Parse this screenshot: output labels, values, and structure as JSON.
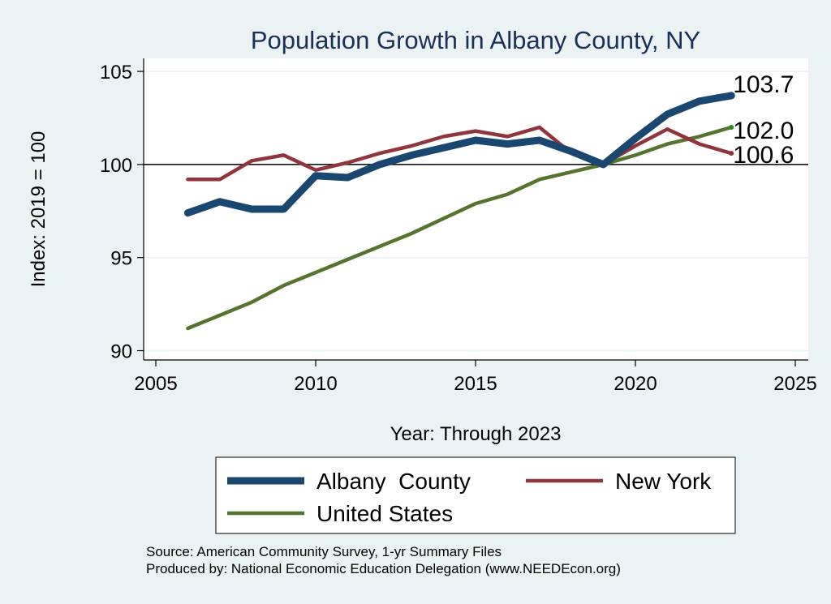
{
  "chart_data": {
    "type": "line",
    "title": "Population Growth in Albany County, NY",
    "xlabel": "Year: Through 2023",
    "ylabel": "Index: 2019 = 100",
    "xlim": [
      2005,
      2025
    ],
    "ylim": [
      89.5,
      105.7
    ],
    "xticks": [
      2005,
      2010,
      2015,
      2020,
      2025
    ],
    "yticks": [
      90,
      95,
      100,
      105
    ],
    "reference_line": 100,
    "grid": true,
    "x": [
      2006,
      2007,
      2008,
      2009,
      2010,
      2011,
      2012,
      2013,
      2014,
      2015,
      2016,
      2017,
      2018,
      2019,
      2020,
      2021,
      2022,
      2023
    ],
    "series": [
      {
        "name": "Albany  County",
        "color": "#1a476f",
        "values": [
          97.4,
          98.0,
          97.6,
          97.6,
          99.4,
          99.3,
          100.0,
          100.5,
          100.9,
          101.3,
          101.1,
          101.3,
          100.7,
          100.0,
          101.4,
          102.7,
          103.4,
          103.7
        ],
        "end_label": "103.7"
      },
      {
        "name": "New York",
        "color": "#90353b",
        "values": [
          99.2,
          99.2,
          100.2,
          100.5,
          99.7,
          100.1,
          100.6,
          101.0,
          101.5,
          101.8,
          101.5,
          102.0,
          100.6,
          100.0,
          101.0,
          101.9,
          101.1,
          100.6
        ],
        "end_label": "100.6"
      },
      {
        "name": "United States",
        "color": "#55752f",
        "values": [
          91.2,
          91.9,
          92.6,
          93.5,
          94.2,
          94.9,
          95.6,
          96.3,
          97.1,
          97.9,
          98.4,
          99.2,
          99.6,
          100.0,
          100.5,
          101.1,
          101.5,
          102.0
        ],
        "end_label": "102.0"
      }
    ],
    "legend_position": "bottom",
    "source_note": "Source: American Community Survey, 1-yr Summary Files",
    "producer_note": "Produced by: National Economic Education Delegation (www.NEEDEcon.org)"
  }
}
